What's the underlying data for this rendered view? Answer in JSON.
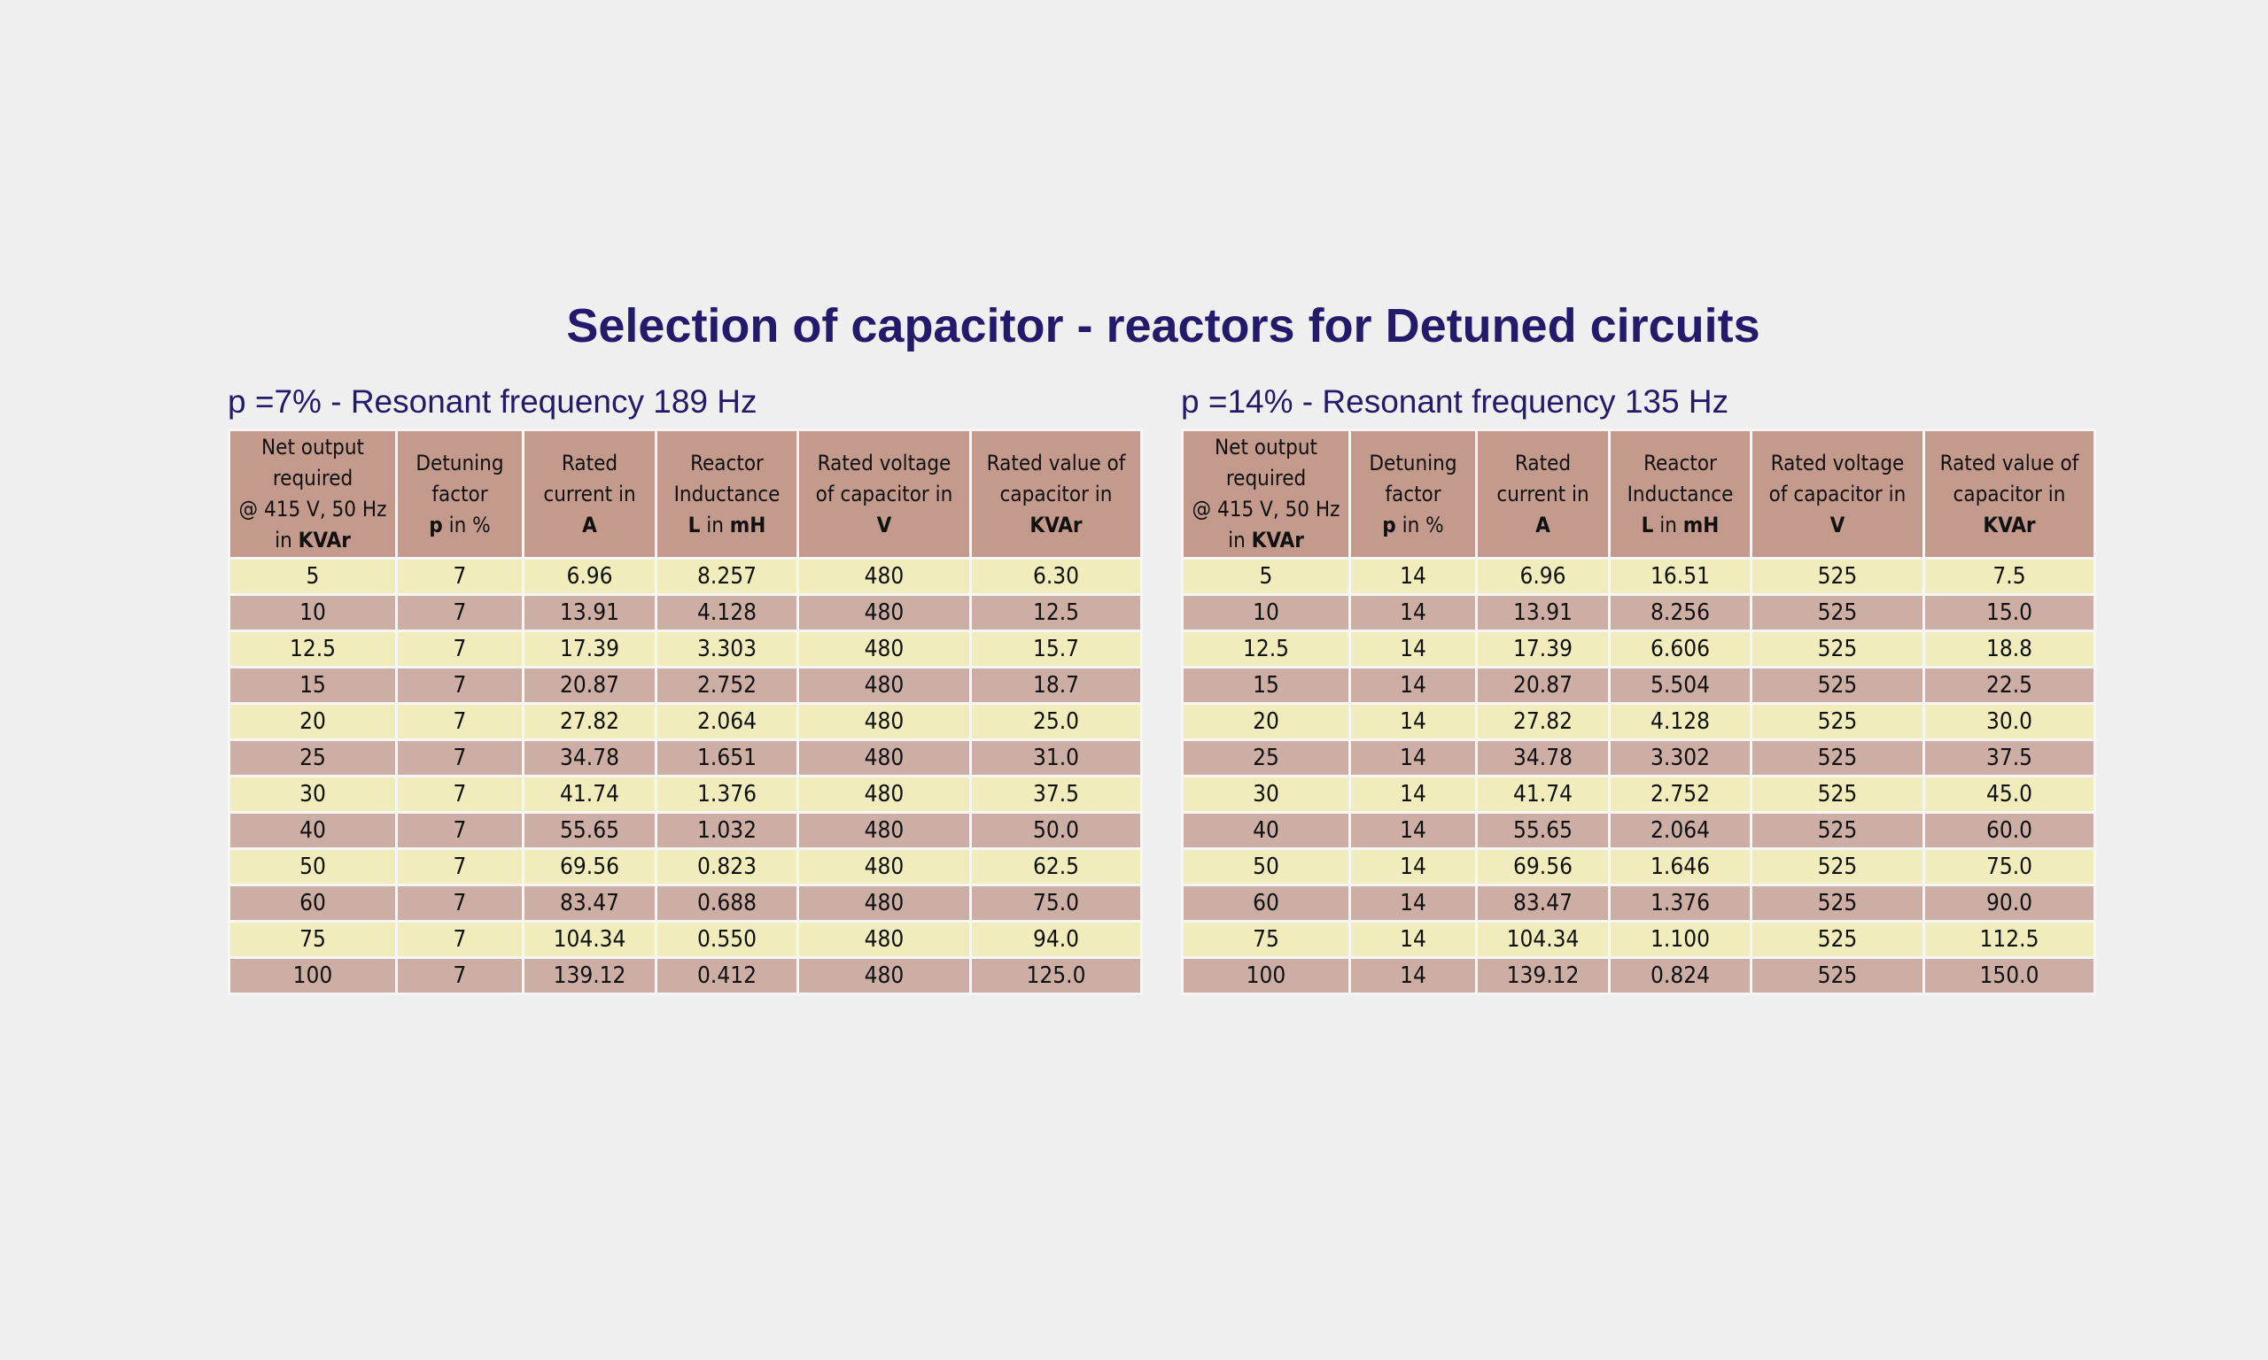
{
  "page": {
    "title": "Selection of capacitor - reactors for Detuned circuits"
  },
  "colors": {
    "title_text": "#231a6c",
    "header_bg": "#c39a8c",
    "row_light": "#f1ecbc",
    "row_dark": "#cdaea5",
    "page_bg": "#efefef"
  },
  "headers": [
    {
      "lines": [
        "Net output",
        "required",
        "@ 415 V, 50 Hz"
      ],
      "unit_prefix": "in ",
      "unit": "KVAr"
    },
    {
      "lines": [
        "Detuning",
        "factor"
      ],
      "unit_prefix": "",
      "unit": "p",
      "unit_suffix": " in %"
    },
    {
      "lines": [
        "Rated",
        "current in"
      ],
      "unit_prefix": "",
      "unit": "A"
    },
    {
      "lines": [
        "Reactor",
        "Inductance"
      ],
      "unit_prefix": "",
      "unit": "L",
      "unit_suffix": " in ",
      "unit2": "mH"
    },
    {
      "lines": [
        "Rated voltage",
        "of capacitor in"
      ],
      "unit_prefix": "",
      "unit": "V"
    },
    {
      "lines": [
        "Rated value of",
        "capacitor in"
      ],
      "unit_prefix": "",
      "unit": "KVAr"
    }
  ],
  "tables": [
    {
      "title": "p =7% - Resonant frequency 189 Hz",
      "rows": [
        [
          "5",
          "7",
          "6.96",
          "8.257",
          "480",
          "6.30"
        ],
        [
          "10",
          "7",
          "13.91",
          "4.128",
          "480",
          "12.5"
        ],
        [
          "12.5",
          "7",
          "17.39",
          "3.303",
          "480",
          "15.7"
        ],
        [
          "15",
          "7",
          "20.87",
          "2.752",
          "480",
          "18.7"
        ],
        [
          "20",
          "7",
          "27.82",
          "2.064",
          "480",
          "25.0"
        ],
        [
          "25",
          "7",
          "34.78",
          "1.651",
          "480",
          "31.0"
        ],
        [
          "30",
          "7",
          "41.74",
          "1.376",
          "480",
          "37.5"
        ],
        [
          "40",
          "7",
          "55.65",
          "1.032",
          "480",
          "50.0"
        ],
        [
          "50",
          "7",
          "69.56",
          "0.823",
          "480",
          "62.5"
        ],
        [
          "60",
          "7",
          "83.47",
          "0.688",
          "480",
          "75.0"
        ],
        [
          "75",
          "7",
          "104.34",
          "0.550",
          "480",
          "94.0"
        ],
        [
          "100",
          "7",
          "139.12",
          "0.412",
          "480",
          "125.0"
        ]
      ]
    },
    {
      "title": "p =14% - Resonant frequency 135 Hz",
      "rows": [
        [
          "5",
          "14",
          "6.96",
          "16.51",
          "525",
          "7.5"
        ],
        [
          "10",
          "14",
          "13.91",
          "8.256",
          "525",
          "15.0"
        ],
        [
          "12.5",
          "14",
          "17.39",
          "6.606",
          "525",
          "18.8"
        ],
        [
          "15",
          "14",
          "20.87",
          "5.504",
          "525",
          "22.5"
        ],
        [
          "20",
          "14",
          "27.82",
          "4.128",
          "525",
          "30.0"
        ],
        [
          "25",
          "14",
          "34.78",
          "3.302",
          "525",
          "37.5"
        ],
        [
          "30",
          "14",
          "41.74",
          "2.752",
          "525",
          "45.0"
        ],
        [
          "40",
          "14",
          "55.65",
          "2.064",
          "525",
          "60.0"
        ],
        [
          "50",
          "14",
          "69.56",
          "1.646",
          "525",
          "75.0"
        ],
        [
          "60",
          "14",
          "83.47",
          "1.376",
          "525",
          "90.0"
        ],
        [
          "75",
          "14",
          "104.34",
          "1.100",
          "525",
          "112.5"
        ],
        [
          "100",
          "14",
          "139.12",
          "0.824",
          "525",
          "150.0"
        ]
      ]
    }
  ]
}
